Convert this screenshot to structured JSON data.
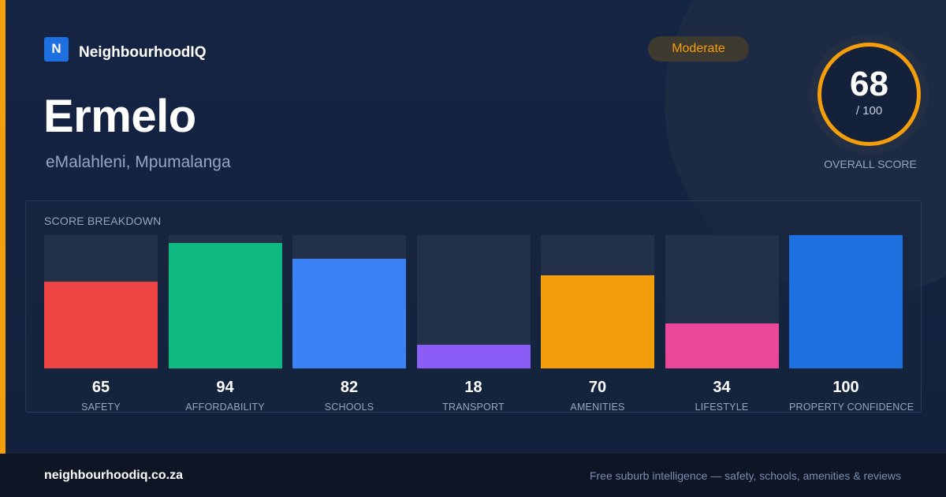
{
  "brand": {
    "logo_letter": "N",
    "name": "NeighbourhoodIQ"
  },
  "suburb": {
    "name": "Ermelo",
    "region": "eMalahleni, Mpumalanga"
  },
  "rating": {
    "label": "Moderate",
    "color": "#f59e0b"
  },
  "overall": {
    "score": "68",
    "max": "/ 100",
    "label": "OVERALL SCORE"
  },
  "breakdown": {
    "title": "SCORE BREAKDOWN",
    "max": 100,
    "items": [
      {
        "label": "SAFETY",
        "value": 65,
        "color": "#ef4444"
      },
      {
        "label": "AFFORDABILITY",
        "value": 94,
        "color": "#10b981"
      },
      {
        "label": "SCHOOLS",
        "value": 82,
        "color": "#3b82f6"
      },
      {
        "label": "TRANSPORT",
        "value": 18,
        "color": "#8b5cf6"
      },
      {
        "label": "AMENITIES",
        "value": 70,
        "color": "#f59e0b"
      },
      {
        "label": "LIFESTYLE",
        "value": 34,
        "color": "#ec4899"
      },
      {
        "label": "PROPERTY CONFIDENCE",
        "value": 100,
        "color": "#1e6fe0"
      }
    ]
  },
  "footer": {
    "url": "neighbourhoodiq.co.za",
    "tagline": "Free suburb intelligence — safety, schools, amenities & reviews"
  }
}
